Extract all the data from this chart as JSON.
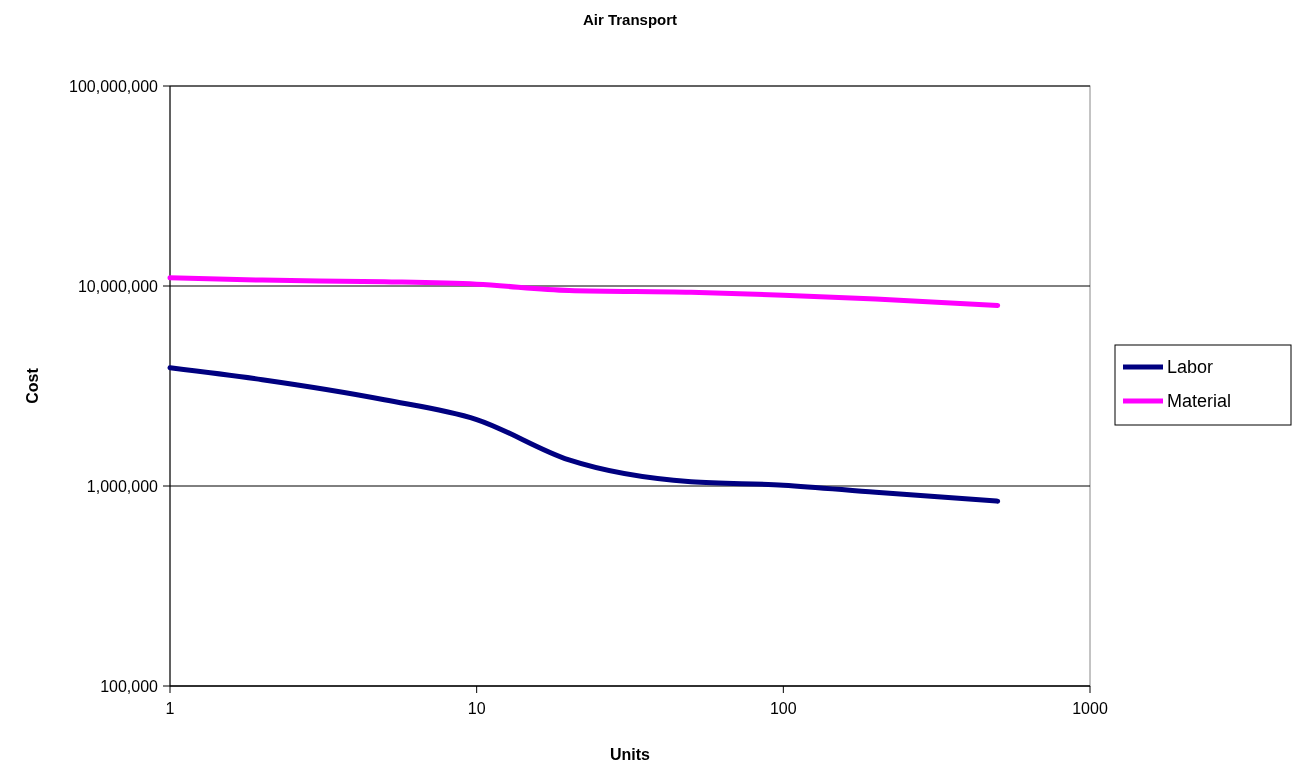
{
  "chart_data": {
    "type": "line",
    "title": "Air Transport",
    "xlabel": "Units",
    "ylabel": "Cost",
    "x": [
      1,
      2,
      5,
      10,
      20,
      50,
      100,
      200,
      500
    ],
    "series": [
      {
        "name": "Labor",
        "color": "#000080",
        "values": [
          3900000,
          3400000,
          2700000,
          2150000,
          1350000,
          1050000,
          1010000,
          930000,
          840000
        ]
      },
      {
        "name": "Material",
        "color": "#ff00ff",
        "values": [
          11000000,
          10700000,
          10500000,
          10200000,
          9500000,
          9300000,
          9000000,
          8600000,
          8000000
        ]
      }
    ],
    "log": "xy",
    "xlim": [
      1,
      1000
    ],
    "xticks": [
      1,
      10,
      100,
      1000
    ],
    "ylim": [
      100000,
      100000000
    ],
    "yticks": [
      {
        "value": 100000,
        "label": "100,000"
      },
      {
        "value": 1000000,
        "label": "1,000,000"
      },
      {
        "value": 10000000,
        "label": "10,000,000"
      },
      {
        "value": 100000000,
        "label": "100,000,000"
      }
    ],
    "grid": "y",
    "legend": "right",
    "marker": "none",
    "line_style": "solid"
  }
}
